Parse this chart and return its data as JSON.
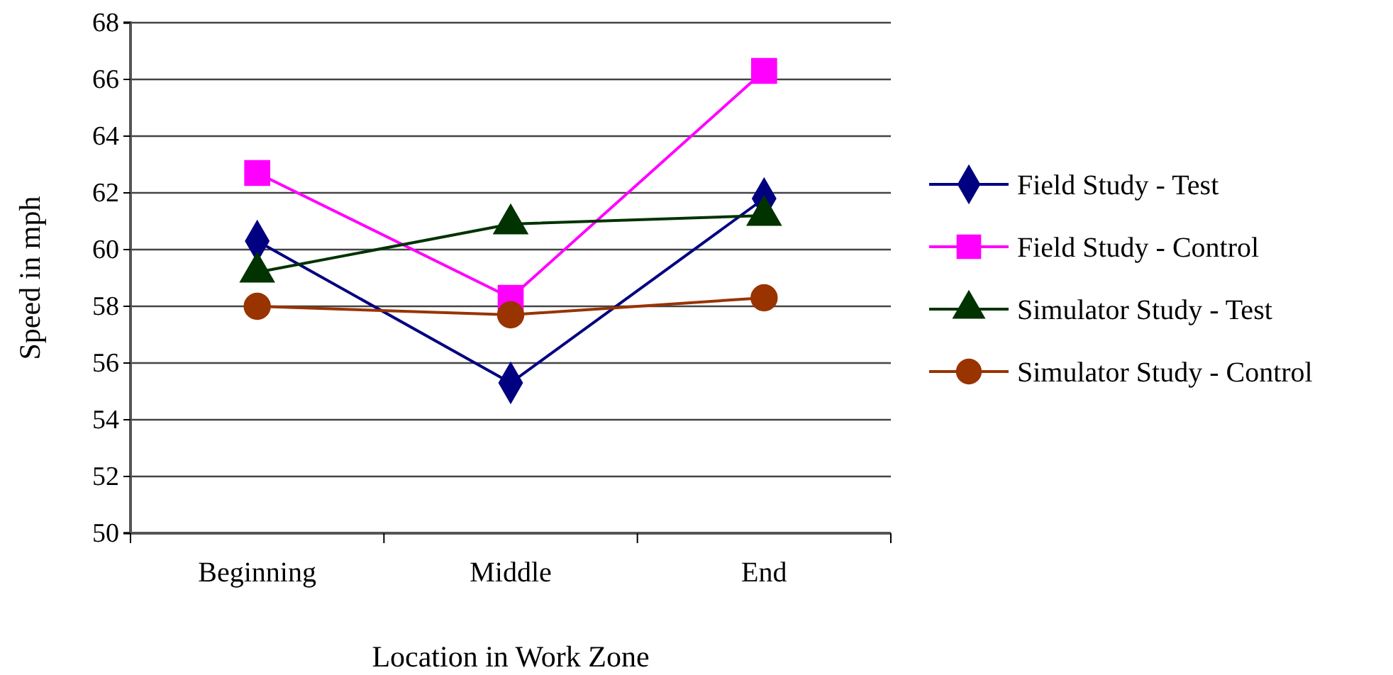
{
  "chart_data": {
    "type": "line",
    "xlabel": "Location in Work Zone",
    "ylabel": "Speed in mph",
    "categories": [
      "Beginning",
      "Middle",
      "End"
    ],
    "series": [
      {
        "name": "Field Study - Test",
        "color": "#000080",
        "marker": "diamond",
        "values": [
          60.3,
          55.3,
          61.8
        ]
      },
      {
        "name": "Field Study - Control",
        "color": "#ff00ff",
        "marker": "square",
        "values": [
          62.7,
          58.3,
          66.3
        ]
      },
      {
        "name": "Simulator Study - Test",
        "color": "#003300",
        "marker": "triangle",
        "values": [
          59.2,
          60.9,
          61.2
        ]
      },
      {
        "name": "Simulator Study - Control",
        "color": "#993300",
        "marker": "circle",
        "values": [
          58.0,
          57.7,
          58.3
        ]
      }
    ],
    "ylim": [
      50,
      68
    ],
    "yticks": [
      50,
      52,
      54,
      56,
      58,
      60,
      62,
      64,
      66,
      68
    ],
    "grid": "y",
    "legend": "right"
  }
}
